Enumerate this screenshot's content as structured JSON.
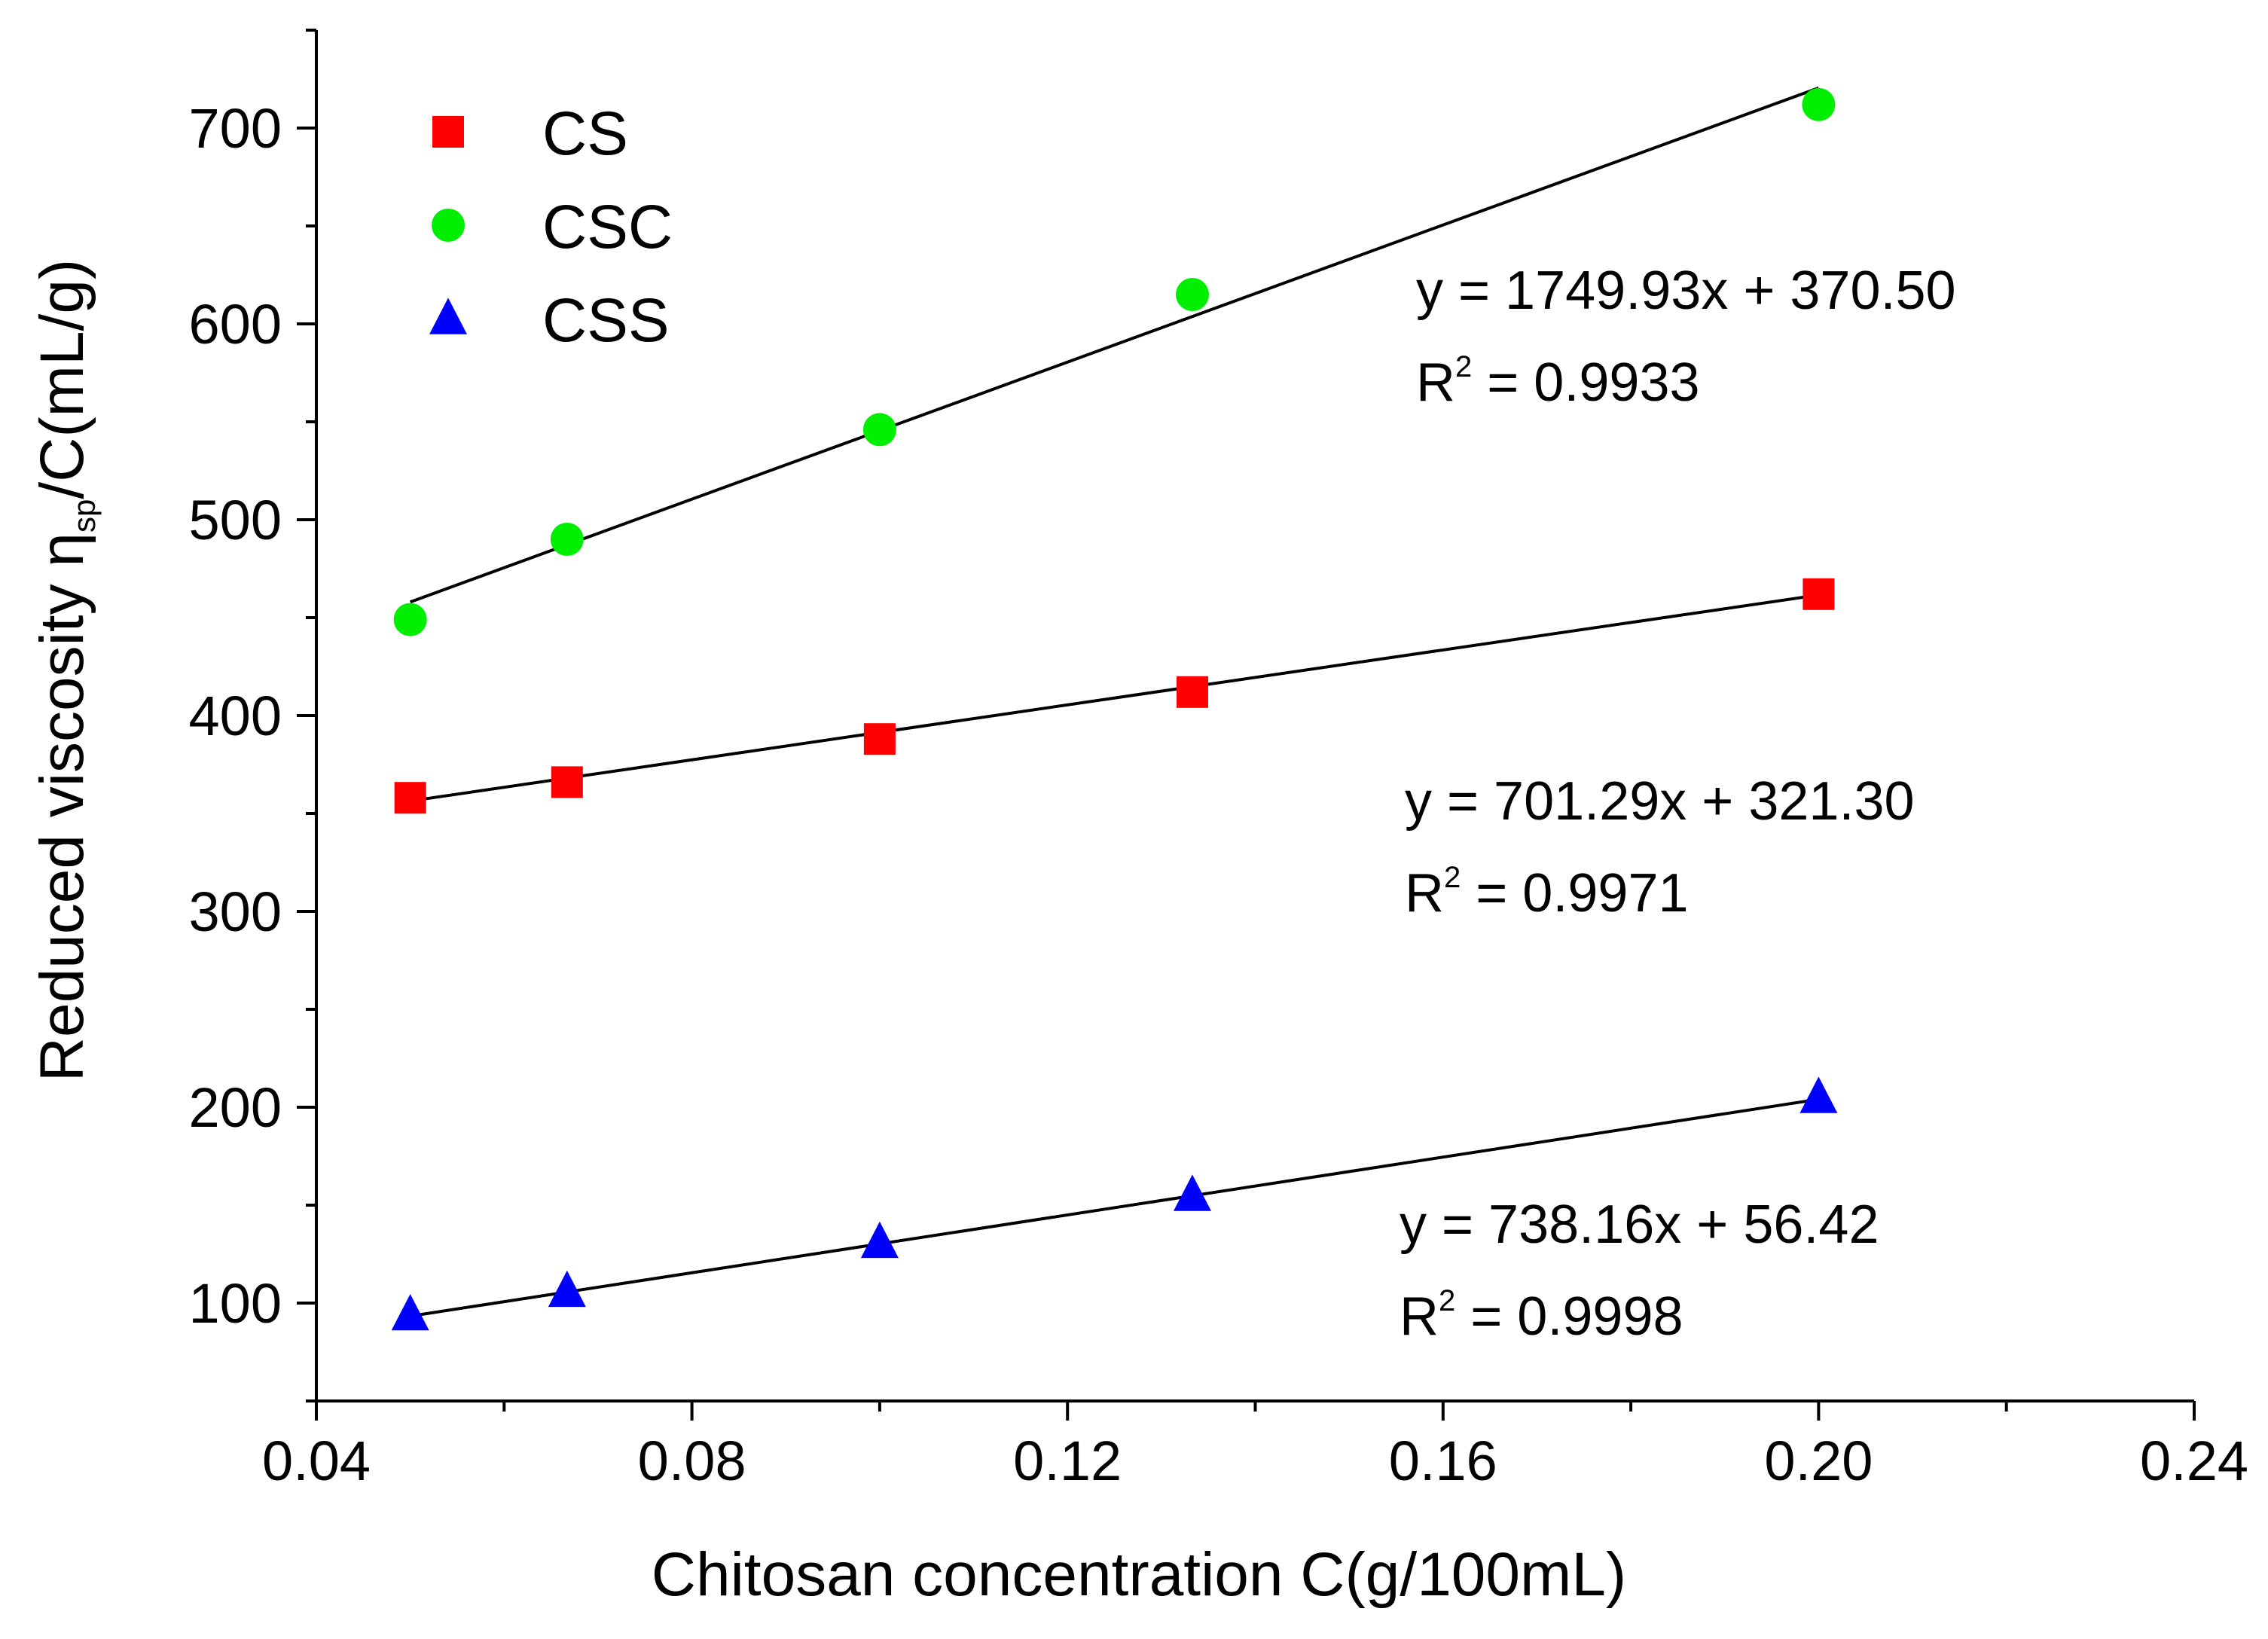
{
  "chart_data": {
    "type": "scatter",
    "xlabel": "Chitosan concentration  C(g/100mL)",
    "ylabel": {
      "prefix": "Reduced viscosity  η",
      "subscript": "sp",
      "suffix": "/C(mL/g)"
    },
    "xlim": [
      0.04,
      0.24
    ],
    "ylim": [
      50,
      750
    ],
    "x_ticks": [
      "0.04",
      "0.08",
      "0.12",
      "0.16",
      "0.20",
      "0.24"
    ],
    "y_ticks": [
      "100",
      "200",
      "300",
      "400",
      "500",
      "600",
      "700"
    ],
    "legend_position": "top-left",
    "series": [
      {
        "name": "CS",
        "marker": "square",
        "color": "#ff0000",
        "x": [
          0.05,
          0.0667,
          0.1,
          0.1333,
          0.2
        ],
        "y": [
          358,
          366,
          388,
          412,
          462
        ],
        "fit": {
          "slope": 701.29,
          "intercept": 321.3
        },
        "equation": "y = 701.29x + 321.30",
        "r2_prefix": "R",
        "r2_suffix": " = 0.9971"
      },
      {
        "name": "CSC",
        "marker": "circle",
        "color": "#00ee00",
        "x": [
          0.05,
          0.0667,
          0.1,
          0.1333,
          0.2
        ],
        "y": [
          449,
          490,
          546,
          615,
          712
        ],
        "fit": {
          "slope": 1749.93,
          "intercept": 370.5
        },
        "equation": "y = 1749.93x + 370.50",
        "r2_prefix": "R",
        "r2_suffix": " = 0.9933"
      },
      {
        "name": "CSS",
        "marker": "triangle",
        "color": "#0000ff",
        "x": [
          0.05,
          0.0667,
          0.1,
          0.1333,
          0.2
        ],
        "y": [
          94,
          106,
          131,
          155,
          205
        ],
        "fit": {
          "slope": 738.16,
          "intercept": 56.42
        },
        "equation": "y = 738.16x + 56.42",
        "r2_prefix": "R",
        "r2_suffix": " = 0.9998"
      }
    ]
  }
}
